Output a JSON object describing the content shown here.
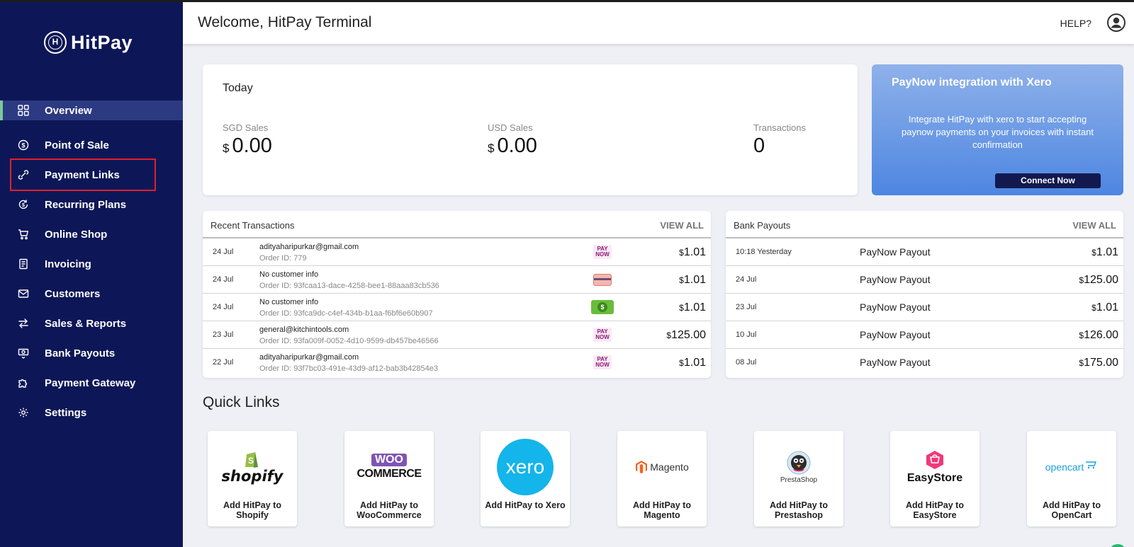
{
  "brand": {
    "name": "HitPay",
    "mark_letter": "H"
  },
  "sidebar": {
    "items": [
      {
        "key": "overview",
        "label": "Overview",
        "icon": "grid-icon"
      },
      {
        "key": "pos",
        "label": "Point of Sale",
        "icon": "dollar-circle-icon"
      },
      {
        "key": "payment-links",
        "label": "Payment Links",
        "icon": "link-icon"
      },
      {
        "key": "recurring",
        "label": "Recurring Plans",
        "icon": "recurring-icon"
      },
      {
        "key": "shop",
        "label": "Online Shop",
        "icon": "cart-icon"
      },
      {
        "key": "invoicing",
        "label": "Invoicing",
        "icon": "invoice-icon"
      },
      {
        "key": "customers",
        "label": "Customers",
        "icon": "mail-icon"
      },
      {
        "key": "reports",
        "label": "Sales & Reports",
        "icon": "arrows-icon"
      },
      {
        "key": "payouts",
        "label": "Bank Payouts",
        "icon": "payout-icon"
      },
      {
        "key": "gateway",
        "label": "Payment Gateway",
        "icon": "puzzle-icon"
      },
      {
        "key": "settings",
        "label": "Settings",
        "icon": "gear-icon"
      }
    ]
  },
  "header": {
    "welcome": "Welcome, HitPay Terminal",
    "help": "HELP?"
  },
  "today": {
    "title": "Today",
    "sgd": {
      "label": "SGD Sales",
      "currency": "$",
      "value": "0.00"
    },
    "usd": {
      "label": "USD Sales",
      "currency": "$",
      "value": "0.00"
    },
    "transactions": {
      "label": "Transactions",
      "value": "0"
    }
  },
  "promo": {
    "title": "PayNow integration with Xero",
    "description": "Integrate HitPay with xero to start accepting paynow payments on your invoices with instant confirmation",
    "button": "Connect Now"
  },
  "recent": {
    "title": "Recent Transactions",
    "view_all": "VIEW ALL",
    "rows": [
      {
        "date": "24 Jul",
        "customer": "adityaharipurkar@gmail.com",
        "order_label": "Order ID:",
        "order_id": "779",
        "method": "paynow",
        "currency": "$",
        "amount": "1.01"
      },
      {
        "date": "24 Jul",
        "customer": "No customer info",
        "order_label": "Order ID:",
        "order_id": "93fcaa13-dace-4258-bee1-88aaa83cb536",
        "method": "card",
        "currency": "$",
        "amount": "1.01"
      },
      {
        "date": "24 Jul",
        "customer": "No customer info",
        "order_label": "Order ID:",
        "order_id": "93fca9dc-c4ef-434b-b1aa-f6bf6e60b907",
        "method": "cash",
        "currency": "$",
        "amount": "1.01"
      },
      {
        "date": "23 Jul",
        "customer": "general@kitchintools.com",
        "order_label": "Order ID:",
        "order_id": "93fa009f-0052-4d10-9599-db457be46566",
        "method": "paynow",
        "currency": "$",
        "amount": "125.00"
      },
      {
        "date": "22 Jul",
        "customer": "adityaharipurkar@gmail.com",
        "order_label": "Order ID:",
        "order_id": "93f7bc03-491e-43d9-af12-bab3b42854e3",
        "method": "paynow",
        "currency": "$",
        "amount": "1.01"
      }
    ],
    "paynow_top": "PAY",
    "paynow_bottom": "NOW",
    "cash_symbol": "$"
  },
  "payouts": {
    "title": "Bank Payouts",
    "view_all": "VIEW ALL",
    "rows": [
      {
        "date": "10:18 Yesterday",
        "label": "PayNow Payout",
        "currency": "$",
        "amount": "1.01"
      },
      {
        "date": "24 Jul",
        "label": "PayNow Payout",
        "currency": "$",
        "amount": "125.00"
      },
      {
        "date": "23 Jul",
        "label": "PayNow Payout",
        "currency": "$",
        "amount": "1.01"
      },
      {
        "date": "10 Jul",
        "label": "PayNow Payout",
        "currency": "$",
        "amount": "126.00"
      },
      {
        "date": "08 Jul",
        "label": "PayNow Payout",
        "currency": "$",
        "amount": "175.00"
      }
    ]
  },
  "quick_links": {
    "title": "Quick Links",
    "items": [
      {
        "key": "shopify",
        "caption": "Add HitPay to Shopify",
        "logo_text": "shopify"
      },
      {
        "key": "woocommerce",
        "caption": "Add HitPay to WooCommerce",
        "logo_text": "WOO",
        "logo_text2": "COMMERCE"
      },
      {
        "key": "xero",
        "caption": "Add HitPay to Xero",
        "logo_text": "xero"
      },
      {
        "key": "magento",
        "caption": "Add HitPay to Magento",
        "logo_text": "Magento"
      },
      {
        "key": "prestashop",
        "caption": "Add HitPay to Prestashop",
        "logo_text": "PrestaShop"
      },
      {
        "key": "easystore",
        "caption": "Add HitPay to EasyStore",
        "logo_text": "EasyStore"
      },
      {
        "key": "opencart",
        "caption": "Add HitPay to OpenCart",
        "logo_text": "opencart"
      }
    ]
  },
  "colors": {
    "sidebar": "#0d1757",
    "active": "#2c3a82",
    "highlight": "#e0202d",
    "promo": "#4d86e1"
  }
}
